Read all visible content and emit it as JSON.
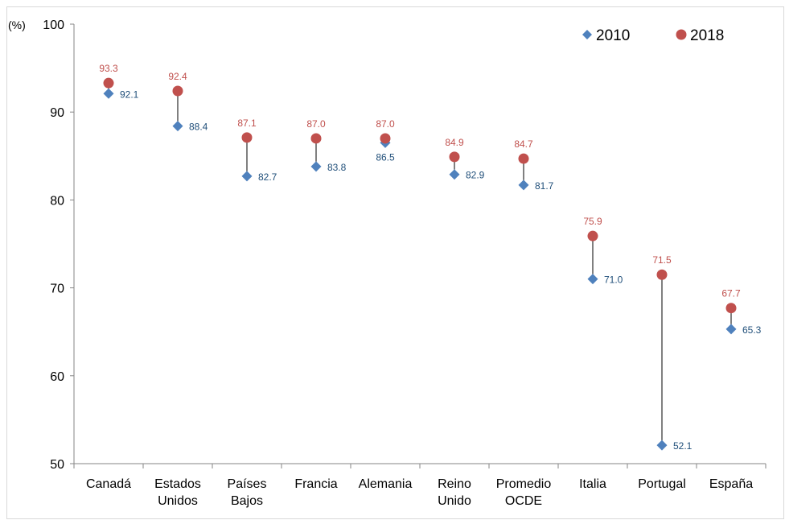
{
  "chart_data": {
    "type": "scatter",
    "ylabel": "(%)",
    "ylim": [
      50,
      100
    ],
    "yticks": [
      "50",
      "60",
      "70",
      "80",
      "90",
      "100"
    ],
    "categories": [
      [
        "Canadá"
      ],
      [
        "Estados",
        "Unidos"
      ],
      [
        "Países",
        "Bajos"
      ],
      [
        "Francia"
      ],
      [
        "Alemania"
      ],
      [
        "Reino",
        "Unido"
      ],
      [
        "Promedio",
        "OCDE"
      ],
      [
        "Italia"
      ],
      [
        "Portugal"
      ],
      [
        "España"
      ]
    ],
    "series": [
      {
        "name": "2010",
        "marker": "diamond",
        "color": "#4f81bd",
        "label_color": "#1f4e79",
        "values": [
          92.1,
          88.4,
          82.7,
          83.8,
          86.5,
          82.9,
          81.7,
          71.0,
          52.1,
          65.3
        ],
        "labels": [
          "92.1",
          "88.4",
          "82.7",
          "83.8",
          "86.5",
          "82.9",
          "81.7",
          "71.0",
          "52.1",
          "65.3"
        ]
      },
      {
        "name": "2018",
        "marker": "circle",
        "color": "#c0504d",
        "label_color": "#c0504d",
        "values": [
          93.3,
          92.4,
          87.1,
          87.0,
          87.0,
          84.9,
          84.7,
          75.9,
          71.5,
          67.7
        ],
        "labels": [
          "93.3",
          "92.4",
          "87.1",
          "87.0",
          "87.0",
          "84.9",
          "84.7",
          "75.9",
          "71.5",
          "67.7"
        ]
      }
    ],
    "connector_lines": true,
    "legend_position": "top-right",
    "grid": false
  }
}
